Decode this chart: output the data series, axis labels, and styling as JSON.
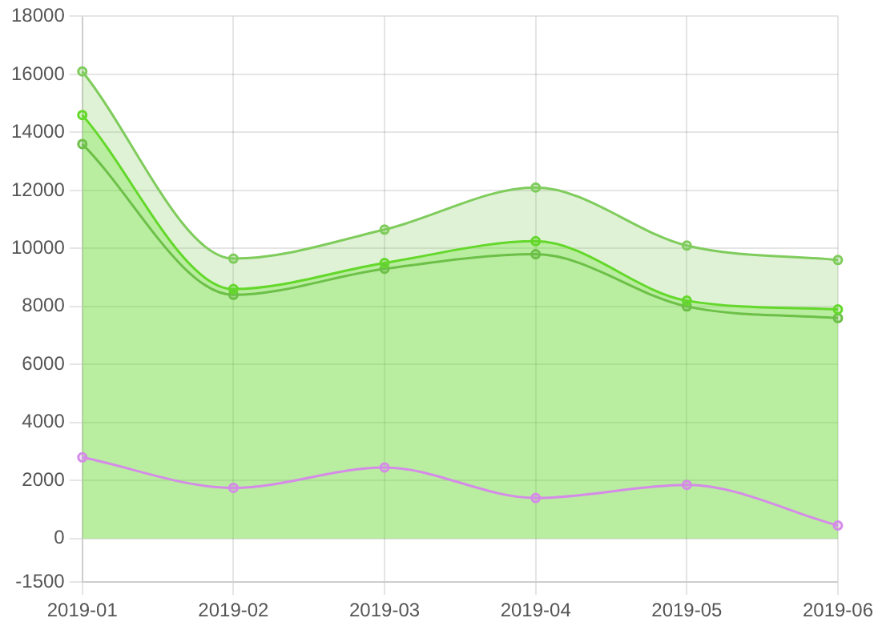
{
  "chart_data": {
    "type": "line",
    "categories": [
      "2019-01",
      "2019-02",
      "2019-03",
      "2019-04",
      "2019-05",
      "2019-06"
    ],
    "series": [
      {
        "type": "area",
        "color": "#7fcc5c",
        "values": [
          16100,
          9650,
          10650,
          12100,
          10100,
          9600
        ]
      },
      {
        "type": "area",
        "color": "#63d82a",
        "values": [
          14600,
          8600,
          9500,
          10250,
          8200,
          7900
        ]
      },
      {
        "type": "line",
        "color": "#6cc048",
        "values": [
          13600,
          8400,
          9300,
          9800,
          8000,
          7600
        ]
      },
      {
        "type": "line",
        "color": "#d58be8",
        "values": [
          2800,
          1750,
          2450,
          1400,
          1850,
          450
        ]
      }
    ],
    "ylim": [
      -1500,
      18000
    ],
    "yticks": [
      -1500,
      0,
      2000,
      4000,
      6000,
      8000,
      10000,
      12000,
      14000,
      16000,
      18000
    ],
    "grid": true,
    "marker": "circle",
    "line_style": "solid"
  }
}
